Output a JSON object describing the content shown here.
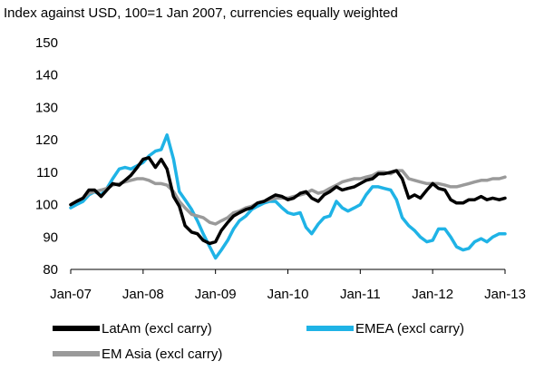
{
  "chart_data": {
    "type": "line",
    "subtitle": "Index against USD, 100=1 Jan 2007, currencies equally weighted",
    "title": "",
    "xlabel": "",
    "ylabel": "",
    "ylim": [
      80,
      150
    ],
    "yticks": [
      80,
      90,
      100,
      110,
      120,
      130,
      140,
      150
    ],
    "x_tick_labels": [
      "Jan-07",
      "Jan-08",
      "Jan-09",
      "Jan-10",
      "Jan-11",
      "Jan-12",
      "Jan-13"
    ],
    "grid": false,
    "legend_position": "bottom",
    "series": [
      {
        "name": "LatAm (excl carry)",
        "color": "#000000",
        "x": [
          2007.0,
          2007.08,
          2007.17,
          2007.25,
          2007.33,
          2007.42,
          2007.5,
          2007.58,
          2007.67,
          2007.75,
          2007.83,
          2007.92,
          2008.0,
          2008.08,
          2008.17,
          2008.25,
          2008.33,
          2008.42,
          2008.5,
          2008.58,
          2008.67,
          2008.75,
          2008.83,
          2008.92,
          2009.0,
          2009.08,
          2009.17,
          2009.25,
          2009.33,
          2009.42,
          2009.5,
          2009.58,
          2009.67,
          2009.75,
          2009.83,
          2009.92,
          2010.0,
          2010.08,
          2010.17,
          2010.25,
          2010.33,
          2010.42,
          2010.5,
          2010.58,
          2010.67,
          2010.75,
          2010.83,
          2010.92,
          2011.0,
          2011.08,
          2011.17,
          2011.25,
          2011.33,
          2011.42,
          2011.5,
          2011.58,
          2011.67,
          2011.75,
          2011.83,
          2011.92,
          2012.0,
          2012.08,
          2012.17,
          2012.25,
          2012.33,
          2012.42,
          2012.5,
          2012.58,
          2012.67,
          2012.75,
          2012.83,
          2012.92,
          2013.0
        ],
        "values": [
          100,
          101,
          102,
          104.5,
          104.5,
          102.5,
          104.5,
          106.5,
          106,
          107.5,
          109,
          111.5,
          114,
          114.5,
          111.5,
          114,
          111,
          102.5,
          99.5,
          93.5,
          91.5,
          91,
          89,
          88,
          88.5,
          92,
          94.5,
          96.5,
          97.5,
          98.5,
          99,
          100.5,
          101,
          102,
          103,
          102.5,
          101.5,
          102,
          103.5,
          104,
          102,
          101,
          103,
          104,
          105.5,
          104.5,
          105,
          105.5,
          106.5,
          107.5,
          108,
          109.5,
          109.5,
          110,
          110.5,
          108,
          102,
          103,
          102,
          104.5,
          106.5,
          105,
          104.5,
          101.5,
          100.5,
          100.5,
          101.5,
          101.5,
          102.5,
          101.5,
          102,
          101.5,
          102
        ]
      },
      {
        "name": "EMEA (excl carry)",
        "color": "#1fb3e6",
        "x": [
          2007.0,
          2007.08,
          2007.17,
          2007.25,
          2007.33,
          2007.42,
          2007.5,
          2007.58,
          2007.67,
          2007.75,
          2007.83,
          2007.92,
          2008.0,
          2008.08,
          2008.17,
          2008.25,
          2008.33,
          2008.42,
          2008.5,
          2008.58,
          2008.67,
          2008.75,
          2008.83,
          2008.92,
          2009.0,
          2009.08,
          2009.17,
          2009.25,
          2009.33,
          2009.42,
          2009.5,
          2009.58,
          2009.67,
          2009.75,
          2009.83,
          2009.92,
          2010.0,
          2010.08,
          2010.17,
          2010.25,
          2010.33,
          2010.42,
          2010.5,
          2010.58,
          2010.67,
          2010.75,
          2010.83,
          2010.92,
          2011.0,
          2011.08,
          2011.17,
          2011.25,
          2011.33,
          2011.42,
          2011.5,
          2011.58,
          2011.67,
          2011.75,
          2011.83,
          2011.92,
          2012.0,
          2012.08,
          2012.17,
          2012.25,
          2012.33,
          2012.42,
          2012.5,
          2012.58,
          2012.67,
          2012.75,
          2012.83,
          2012.92,
          2013.0
        ],
        "values": [
          99,
          100,
          101,
          103,
          104,
          103,
          105,
          108,
          111,
          111.5,
          111,
          112,
          113,
          115,
          116.5,
          117,
          121.5,
          114,
          104,
          101.5,
          98.5,
          95,
          91,
          87,
          83.5,
          86,
          89,
          92.5,
          95,
          96.5,
          98.5,
          99.5,
          100.5,
          101,
          101,
          99,
          97.5,
          97,
          97.5,
          93,
          91,
          94,
          96,
          96.5,
          101,
          99,
          98,
          99,
          100,
          103,
          105.5,
          105.5,
          105,
          104.5,
          101.5,
          96,
          93.5,
          92,
          90,
          88.5,
          89,
          92.5,
          92.5,
          90,
          87,
          86,
          86.5,
          88.5,
          89.5,
          88.5,
          90,
          91,
          91
        ]
      },
      {
        "name": "EM Asia (excl carry)",
        "color": "#9a9a9a",
        "x": [
          2007.0,
          2007.08,
          2007.17,
          2007.25,
          2007.33,
          2007.42,
          2007.5,
          2007.58,
          2007.67,
          2007.75,
          2007.83,
          2007.92,
          2008.0,
          2008.08,
          2008.17,
          2008.25,
          2008.33,
          2008.42,
          2008.5,
          2008.58,
          2008.67,
          2008.75,
          2008.83,
          2008.92,
          2009.0,
          2009.08,
          2009.17,
          2009.25,
          2009.33,
          2009.42,
          2009.5,
          2009.58,
          2009.67,
          2009.75,
          2009.83,
          2009.92,
          2010.0,
          2010.08,
          2010.17,
          2010.25,
          2010.33,
          2010.42,
          2010.5,
          2010.58,
          2010.67,
          2010.75,
          2010.83,
          2010.92,
          2011.0,
          2011.08,
          2011.17,
          2011.25,
          2011.33,
          2011.42,
          2011.5,
          2011.58,
          2011.67,
          2011.75,
          2011.83,
          2011.92,
          2012.0,
          2012.08,
          2012.17,
          2012.25,
          2012.33,
          2012.42,
          2012.5,
          2012.58,
          2012.67,
          2012.75,
          2012.83,
          2012.92,
          2013.0
        ],
        "values": [
          100,
          101,
          102,
          103.5,
          104,
          104.5,
          105,
          106,
          106.5,
          107,
          107.5,
          108,
          108,
          107.5,
          106.5,
          106.5,
          106,
          104,
          101,
          99,
          97,
          96.5,
          96,
          94.5,
          94,
          95,
          96,
          97.5,
          98,
          99,
          99.5,
          100.5,
          101,
          101.5,
          102,
          102,
          102,
          102.5,
          103,
          103.5,
          104.5,
          103.5,
          104,
          105,
          106,
          107,
          107.5,
          108,
          108,
          108.5,
          109,
          110,
          110,
          109.5,
          110.5,
          110.5,
          108,
          107.5,
          107,
          106.5,
          106.5,
          106.5,
          106,
          105.5,
          105.5,
          106,
          106.5,
          107,
          107.5,
          107.5,
          108,
          108,
          108.5
        ]
      }
    ]
  }
}
